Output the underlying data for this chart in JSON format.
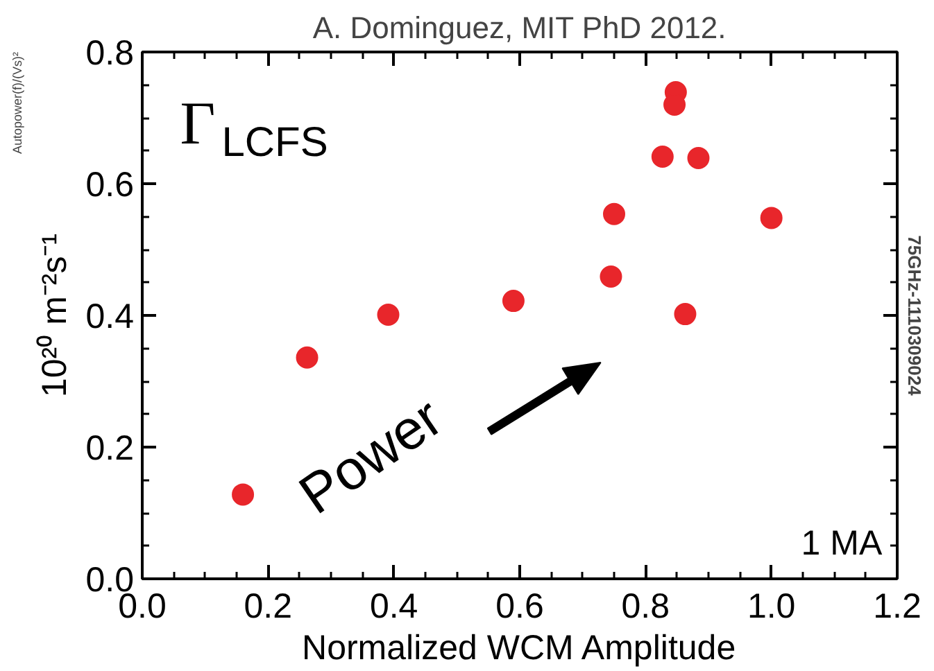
{
  "chart_data": {
    "type": "scatter",
    "xlabel": "Normalized WCM Amplitude",
    "ylabel": "10²⁰ m⁻²s⁻¹",
    "x": [
      0.16,
      0.262,
      0.391,
      0.59,
      0.745,
      0.75,
      0.827,
      0.884,
      0.848,
      0.846,
      0.863,
      1.0
    ],
    "series": [
      {
        "color": "#e8262b",
        "values": [
          0.128,
          0.336,
          0.401,
          0.422,
          0.459,
          0.554,
          0.641,
          0.639,
          0.739,
          0.72,
          0.402,
          0.548
        ]
      }
    ],
    "xlim": [
      0,
      1.2
    ],
    "ylim": [
      0,
      0.8
    ],
    "xticks": [
      {
        "value": 0,
        "label": "0.0"
      },
      0.2,
      0.4,
      0.6,
      0.8,
      {
        "value": 1,
        "label": "1.0"
      },
      {
        "value": 1.2,
        "label": "1.2"
      }
    ],
    "yticks": [
      {
        "value": 0,
        "label": "0.0"
      },
      0.2,
      0.4,
      0.6,
      0.8
    ],
    "marker": "circle",
    "grid": false,
    "annotations": [
      "A. Dominguez, MIT PhD 2012.",
      "Γ$_{LCFS}$",
      "Power",
      "1 MA",
      "75GHz-1110309024",
      "Autopower(f)/(Vs)²"
    ]
  }
}
